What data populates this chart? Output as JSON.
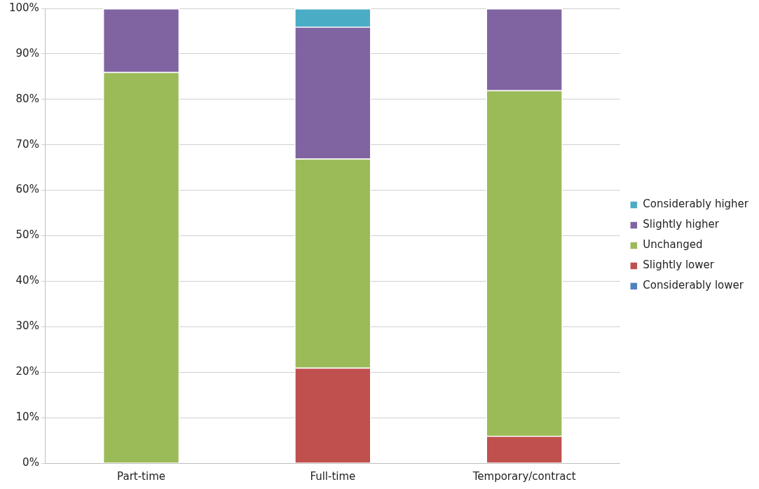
{
  "chart_data": {
    "type": "bar",
    "stacked": true,
    "categories": [
      "Part-time",
      "Full-time",
      "Temporary/contract"
    ],
    "series": [
      {
        "name": "Considerably lower",
        "color": "#4f81bd",
        "values": [
          0,
          0,
          0
        ]
      },
      {
        "name": "Slightly lower",
        "color": "#c0504d",
        "values": [
          0,
          21,
          6
        ]
      },
      {
        "name": "Unchanged",
        "color": "#9bbb59",
        "values": [
          86,
          46,
          76
        ]
      },
      {
        "name": "Slightly higher",
        "color": "#8064a2",
        "values": [
          14,
          29,
          18
        ]
      },
      {
        "name": "Considerably higher",
        "color": "#4bacc6",
        "values": [
          0,
          4,
          0
        ]
      }
    ],
    "ylim": [
      0,
      100
    ],
    "yticks": [
      {
        "value": 0,
        "label": "0%"
      },
      {
        "value": 10,
        "label": "10%"
      },
      {
        "value": 20,
        "label": "20%"
      },
      {
        "value": 30,
        "label": "30%"
      },
      {
        "value": 40,
        "label": "40%"
      },
      {
        "value": 50,
        "label": "50%"
      },
      {
        "value": 60,
        "label": "60%"
      },
      {
        "value": 70,
        "label": "70%"
      },
      {
        "value": 80,
        "label": "80%"
      },
      {
        "value": 90,
        "label": "90%"
      },
      {
        "value": 100,
        "label": "100%"
      }
    ],
    "grid": "y",
    "legend": "right"
  }
}
